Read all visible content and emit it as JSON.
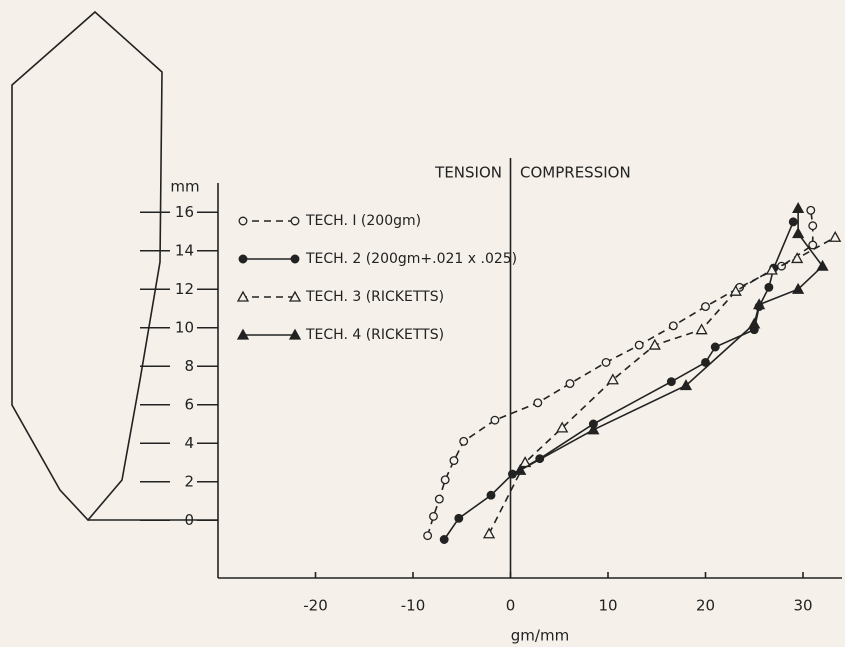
{
  "chart_data": {
    "type": "line",
    "x_label": "gm/mm",
    "y_label": "mm",
    "annotations": [
      "TENSION",
      "COMPRESSION"
    ],
    "reference_line_x": 0,
    "xlim": [
      -30,
      34
    ],
    "xticks": [
      -20,
      -10,
      0,
      10,
      20,
      30
    ],
    "ylim": [
      -3,
      17
    ],
    "yticks": [
      0,
      2,
      4,
      6,
      8,
      10,
      12,
      14,
      16
    ],
    "grid": false,
    "series": [
      {
        "name": "TECH. I (200gm)",
        "color": "#222222",
        "dashed": true,
        "marker": "circle",
        "filled": false,
        "x": [
          -8.5,
          -7.9,
          -7.3,
          -6.7,
          -5.8,
          -4.8,
          -1.6,
          2.8,
          6.1,
          9.8,
          13.2,
          16.7,
          20,
          23.5,
          27.8,
          31,
          31,
          30.8
        ],
        "values": [
          -0.8,
          0.2,
          1.1,
          2.1,
          3.1,
          4.1,
          5.2,
          6.1,
          7.1,
          8.2,
          9.1,
          10.1,
          11.1,
          12.1,
          13.2,
          14.3,
          15.3,
          16.1
        ]
      },
      {
        "name": "TECH. 2 (200gm+.021 x .025)",
        "color": "#222222",
        "dashed": false,
        "marker": "circle",
        "filled": true,
        "x": [
          -6.8,
          -5.3,
          -2,
          0.2,
          3,
          8.5,
          16.5,
          20,
          21,
          25,
          25.5,
          26.5,
          27,
          29
        ],
        "values": [
          -1,
          0.1,
          1.3,
          2.4,
          3.2,
          5,
          7.2,
          8.2,
          9,
          9.9,
          11.1,
          12.1,
          13.1,
          15.5
        ]
      },
      {
        "name": "TECH. 3 (RICKETTS)",
        "color": "#222222",
        "dashed": true,
        "marker": "triangle",
        "filled": false,
        "x": [
          -2.2,
          1.5,
          5.3,
          10.5,
          14.8,
          19.6,
          23.1,
          26.8,
          29.4,
          33.3
        ],
        "values": [
          -0.7,
          3,
          4.8,
          7.3,
          9.1,
          9.9,
          11.9,
          13,
          13.6,
          14.7
        ]
      },
      {
        "name": "TECH. 4 (RICKETTS)",
        "color": "#222222",
        "dashed": false,
        "marker": "triangle",
        "filled": true,
        "x": [
          1,
          8.5,
          18,
          25,
          25.5,
          29.5,
          32,
          29.5,
          29.5
        ],
        "values": [
          2.6,
          4.7,
          7,
          10.2,
          11.2,
          12,
          13.2,
          14.9,
          16.2
        ]
      }
    ]
  }
}
